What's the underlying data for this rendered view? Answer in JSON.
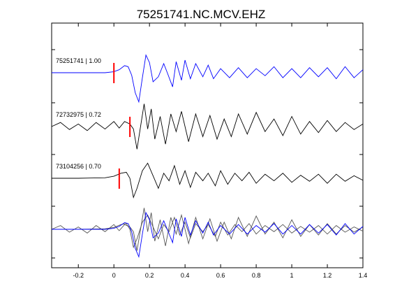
{
  "chart_data": {
    "type": "line",
    "title": "75251741.NC.MCV.EHZ",
    "xlabel": "",
    "ylabel": "",
    "xlim": [
      -0.35,
      1.4
    ],
    "xticks": [
      -0.2,
      0,
      0.2,
      0.4,
      0.6,
      0.8,
      1,
      1.2,
      1.4
    ],
    "xtick_labels": [
      "-0.2",
      "0",
      "0.2",
      "0.4",
      "0.6",
      "0.8",
      "1",
      "1.2",
      "1.4"
    ],
    "grid": false,
    "pick_color": "#ff0000",
    "series": [
      {
        "label": "75251741 | 1.00",
        "color": "#0000ff",
        "pick_time": 0.0,
        "samples": [
          [
            -0.35,
            0.0
          ],
          [
            -0.2,
            0.0
          ],
          [
            -0.05,
            0.0
          ],
          [
            0.0,
            0.02
          ],
          [
            0.03,
            0.06
          ],
          [
            0.06,
            0.14
          ],
          [
            0.08,
            0.12
          ],
          [
            0.1,
            -0.05
          ],
          [
            0.12,
            -0.4
          ],
          [
            0.14,
            -0.58
          ],
          [
            0.16,
            -0.1
          ],
          [
            0.18,
            0.35
          ],
          [
            0.2,
            0.2
          ],
          [
            0.22,
            -0.18
          ],
          [
            0.25,
            -0.08
          ],
          [
            0.28,
            0.18
          ],
          [
            0.3,
            0.0
          ],
          [
            0.33,
            -0.28
          ],
          [
            0.35,
            0.22
          ],
          [
            0.38,
            -0.15
          ],
          [
            0.4,
            0.25
          ],
          [
            0.43,
            -0.12
          ],
          [
            0.46,
            0.18
          ],
          [
            0.5,
            -0.08
          ],
          [
            0.53,
            0.15
          ],
          [
            0.56,
            -0.12
          ],
          [
            0.6,
            0.08
          ],
          [
            0.65,
            -0.1
          ],
          [
            0.7,
            0.1
          ],
          [
            0.75,
            -0.1
          ],
          [
            0.8,
            0.08
          ],
          [
            0.85,
            -0.06
          ],
          [
            0.9,
            0.12
          ],
          [
            0.95,
            -0.1
          ],
          [
            1.0,
            0.08
          ],
          [
            1.05,
            -0.1
          ],
          [
            1.1,
            0.1
          ],
          [
            1.15,
            -0.08
          ],
          [
            1.2,
            0.1
          ],
          [
            1.25,
            -0.12
          ],
          [
            1.3,
            0.12
          ],
          [
            1.35,
            -0.1
          ],
          [
            1.4,
            0.06
          ]
        ]
      },
      {
        "label": "72732975 | 0.72",
        "color": "#000000",
        "pick_time": 0.09,
        "samples": [
          [
            -0.35,
            0.0
          ],
          [
            -0.3,
            0.08
          ],
          [
            -0.25,
            -0.06
          ],
          [
            -0.2,
            0.05
          ],
          [
            -0.15,
            -0.08
          ],
          [
            -0.1,
            0.08
          ],
          [
            -0.05,
            -0.05
          ],
          [
            0.0,
            0.1
          ],
          [
            0.03,
            -0.03
          ],
          [
            0.06,
            0.1
          ],
          [
            0.09,
            0.05
          ],
          [
            0.11,
            -0.05
          ],
          [
            0.13,
            -0.45
          ],
          [
            0.15,
            0.0
          ],
          [
            0.17,
            0.45
          ],
          [
            0.19,
            -0.05
          ],
          [
            0.21,
            0.35
          ],
          [
            0.23,
            -0.25
          ],
          [
            0.26,
            0.2
          ],
          [
            0.29,
            -0.35
          ],
          [
            0.32,
            0.25
          ],
          [
            0.35,
            -0.1
          ],
          [
            0.38,
            0.3
          ],
          [
            0.42,
            -0.3
          ],
          [
            0.46,
            0.25
          ],
          [
            0.5,
            -0.2
          ],
          [
            0.54,
            0.22
          ],
          [
            0.58,
            -0.25
          ],
          [
            0.62,
            0.15
          ],
          [
            0.66,
            -0.2
          ],
          [
            0.7,
            0.25
          ],
          [
            0.75,
            -0.15
          ],
          [
            0.8,
            0.28
          ],
          [
            0.85,
            -0.1
          ],
          [
            0.9,
            0.15
          ],
          [
            0.95,
            -0.18
          ],
          [
            1.0,
            0.2
          ],
          [
            1.05,
            -0.15
          ],
          [
            1.1,
            0.1
          ],
          [
            1.15,
            -0.12
          ],
          [
            1.2,
            0.12
          ],
          [
            1.25,
            -0.1
          ],
          [
            1.3,
            0.08
          ],
          [
            1.35,
            -0.06
          ],
          [
            1.4,
            0.05
          ]
        ]
      },
      {
        "label": "73104256 | 0.70",
        "color": "#000000",
        "pick_time": 0.03,
        "samples": [
          [
            -0.35,
            0.0
          ],
          [
            -0.2,
            0.0
          ],
          [
            -0.05,
            0.01
          ],
          [
            0.0,
            0.04
          ],
          [
            0.04,
            0.1
          ],
          [
            0.07,
            0.12
          ],
          [
            0.09,
            0.0
          ],
          [
            0.11,
            -0.38
          ],
          [
            0.13,
            -0.2
          ],
          [
            0.16,
            0.15
          ],
          [
            0.19,
            0.3
          ],
          [
            0.22,
            0.05
          ],
          [
            0.25,
            -0.2
          ],
          [
            0.28,
            0.1
          ],
          [
            0.31,
            -0.05
          ],
          [
            0.34,
            0.25
          ],
          [
            0.37,
            -0.12
          ],
          [
            0.4,
            0.15
          ],
          [
            0.43,
            -0.18
          ],
          [
            0.46,
            0.12
          ],
          [
            0.5,
            -0.05
          ],
          [
            0.53,
            0.1
          ],
          [
            0.57,
            -0.15
          ],
          [
            0.6,
            0.15
          ],
          [
            0.64,
            -0.12
          ],
          [
            0.68,
            0.1
          ],
          [
            0.72,
            -0.05
          ],
          [
            0.76,
            0.12
          ],
          [
            0.8,
            -0.1
          ],
          [
            0.85,
            0.08
          ],
          [
            0.9,
            -0.05
          ],
          [
            0.95,
            0.1
          ],
          [
            1.0,
            -0.08
          ],
          [
            1.05,
            0.06
          ],
          [
            1.1,
            -0.06
          ],
          [
            1.15,
            0.08
          ],
          [
            1.2,
            -0.1
          ],
          [
            1.25,
            0.08
          ],
          [
            1.3,
            -0.06
          ],
          [
            1.35,
            0.05
          ],
          [
            1.4,
            -0.04
          ]
        ]
      }
    ]
  }
}
